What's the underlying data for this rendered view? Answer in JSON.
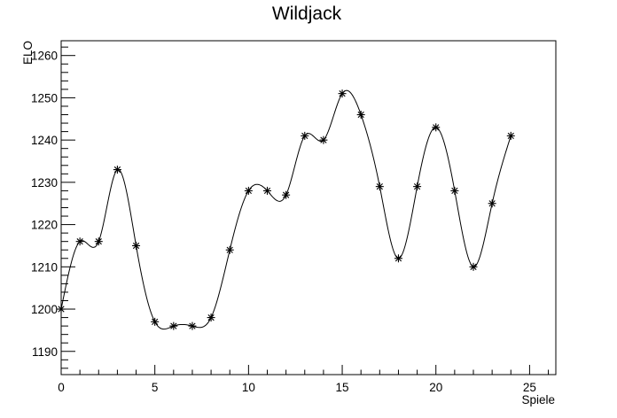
{
  "chart_data": {
    "type": "scatter",
    "title": "Wildjack",
    "xlabel": "Spiele",
    "ylabel": "ELO",
    "xlim": [
      0,
      26.4
    ],
    "ylim": [
      1184.5,
      1263.5
    ],
    "x_ticks": [
      0,
      5,
      10,
      15,
      20,
      25
    ],
    "x_tick_labels": [
      "0",
      "5",
      "10",
      "15",
      "20",
      "25"
    ],
    "y_ticks": [
      1190,
      1200,
      1210,
      1220,
      1230,
      1240,
      1250,
      1260
    ],
    "y_tick_labels": [
      "1190",
      "1200",
      "1210",
      "1220",
      "1230",
      "1240",
      "1250",
      "1260"
    ],
    "grid": false,
    "marker": "asterisk",
    "curve": "smooth",
    "series": [
      {
        "x": [
          0,
          1,
          2,
          3,
          4,
          5,
          6,
          7,
          8,
          9,
          10,
          11,
          12,
          13,
          14,
          15,
          16,
          17,
          18,
          19,
          20,
          21,
          22,
          23,
          24
        ],
        "y": [
          1200,
          1216,
          1216,
          1233,
          1215,
          1197,
          1196,
          1196,
          1198,
          1214,
          1228,
          1228,
          1227,
          1241,
          1240,
          1251,
          1246,
          1229,
          1212,
          1229,
          1243,
          1228,
          1210,
          1225,
          1241
        ]
      }
    ]
  }
}
